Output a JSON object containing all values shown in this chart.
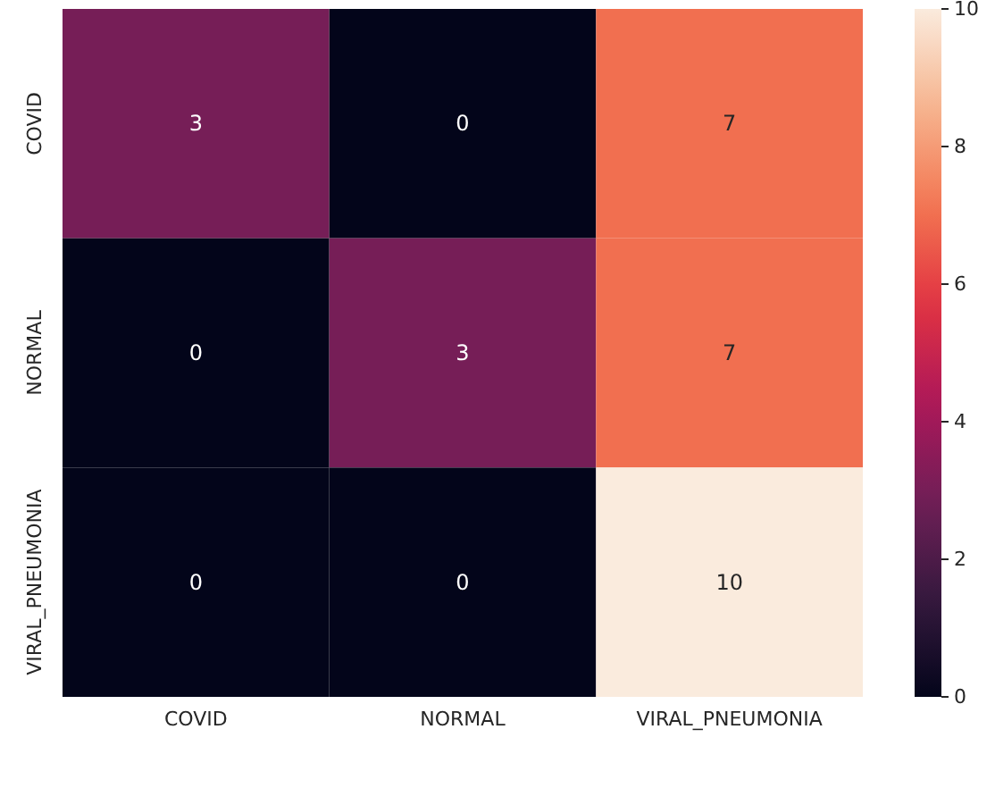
{
  "chart_data": {
    "type": "heatmap",
    "categories": [
      "COVID",
      "NORMAL",
      "VIRAL_PNEUMONIA"
    ],
    "y_categories": [
      "COVID",
      "NORMAL",
      "VIRAL_PNEUMONIA"
    ],
    "cells": [
      [
        3,
        0,
        7
      ],
      [
        0,
        3,
        7
      ],
      [
        0,
        0,
        10
      ]
    ],
    "data_labels": true,
    "clim": [
      0,
      10
    ],
    "cticks": [
      0,
      2,
      4,
      6,
      8,
      10
    ]
  }
}
